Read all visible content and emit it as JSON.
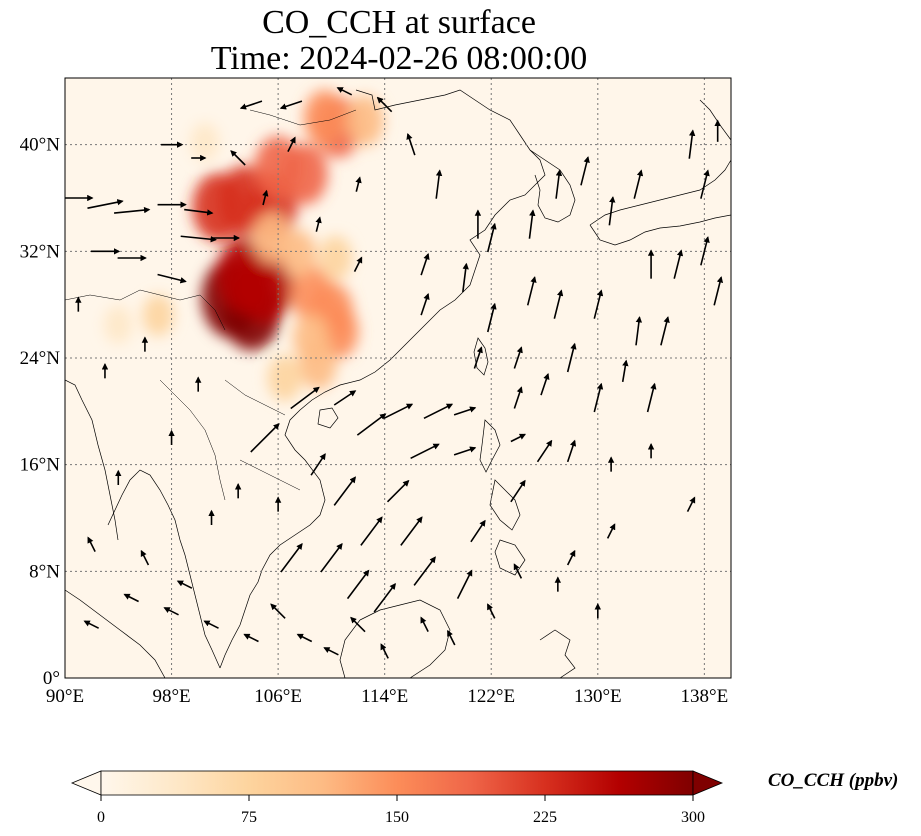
{
  "title": "CO_CCH at surface",
  "subtitle": "Time: 2024-02-26 08:00:00",
  "map": {
    "lon_ticks": [
      "90°E",
      "98°E",
      "106°E",
      "114°E",
      "122°E",
      "130°E",
      "138°E"
    ],
    "lat_ticks": [
      "0°",
      "8°N",
      "16°N",
      "24°N",
      "32°N",
      "40°N"
    ],
    "lon_values": [
      90,
      98,
      106,
      114,
      122,
      130,
      138
    ],
    "lat_values": [
      0,
      8,
      16,
      24,
      32,
      40
    ],
    "extent": {
      "lon_min": 90,
      "lon_max": 140,
      "lat_min": 0,
      "lat_max": 45
    },
    "gridlines": true
  },
  "colorbar": {
    "label": "CO_CCH (ppbv)",
    "ticks": [
      "0",
      "75",
      "150",
      "225",
      "300"
    ],
    "tick_values": [
      0,
      75,
      150,
      225,
      300
    ],
    "min": 0,
    "max": 300,
    "extend": "both",
    "colormap": "OrRd",
    "colors": [
      "#fff7ec",
      "#fee8c8",
      "#fdd49e",
      "#fdbb84",
      "#fc8d59",
      "#ef6548",
      "#d7301f",
      "#b30000",
      "#7f0000"
    ]
  },
  "plume": {
    "lon_lat_value": [
      [
        102.5,
        28.5,
        300
      ],
      [
        104,
        27.5,
        290
      ],
      [
        105,
        29.5,
        280
      ],
      [
        103.5,
        30.2,
        270
      ],
      [
        101.5,
        35.3,
        230
      ],
      [
        103.5,
        35.8,
        240
      ],
      [
        105.5,
        35.3,
        220
      ],
      [
        106,
        38.3,
        190
      ],
      [
        108,
        37.8,
        180
      ],
      [
        110.5,
        41.3,
        180
      ],
      [
        109.5,
        42,
        150
      ],
      [
        112.5,
        41.8,
        120
      ],
      [
        108.5,
        28.8,
        150
      ],
      [
        110,
        27.5,
        160
      ],
      [
        110.5,
        26,
        140
      ],
      [
        108.5,
        25.5,
        110
      ],
      [
        109,
        23.5,
        110
      ],
      [
        106.5,
        22.5,
        90
      ],
      [
        97,
        27.2,
        60
      ],
      [
        94,
        26.5,
        40
      ],
      [
        100.5,
        40.2,
        40
      ],
      [
        107.5,
        31.8,
        100
      ],
      [
        105.5,
        33,
        120
      ],
      [
        110.3,
        31.5,
        80
      ]
    ]
  },
  "wind_vectors": [
    [
      91,
      36,
      4,
      0
    ],
    [
      93,
      35.5,
      5,
      1
    ],
    [
      95,
      35,
      5,
      0.5
    ],
    [
      98,
      35.5,
      4,
      0
    ],
    [
      100,
      35,
      4,
      -0.5
    ],
    [
      93,
      32,
      4,
      0
    ],
    [
      95,
      31.5,
      4,
      0
    ],
    [
      100,
      33,
      5,
      -0.5
    ],
    [
      102,
      33,
      4,
      0
    ],
    [
      98,
      30,
      4,
      -1
    ],
    [
      105,
      18,
      4,
      4
    ],
    [
      108,
      21,
      4,
      3
    ],
    [
      111,
      21,
      3,
      2
    ],
    [
      113,
      19,
      4,
      3
    ],
    [
      115,
      20,
      4,
      2
    ],
    [
      118,
      20,
      4,
      2
    ],
    [
      120,
      20,
      3,
      1
    ],
    [
      117,
      17,
      4,
      2
    ],
    [
      120,
      17,
      3,
      1
    ],
    [
      124,
      18,
      2,
      1
    ],
    [
      109,
      16,
      2,
      3
    ],
    [
      111,
      14,
      3,
      4
    ],
    [
      113,
      11,
      3,
      4
    ],
    [
      116,
      11,
      3,
      4
    ],
    [
      115,
      14,
      3,
      3
    ],
    [
      107,
      9,
      3,
      4
    ],
    [
      110,
      9,
      3,
      4
    ],
    [
      112,
      7,
      3,
      4
    ],
    [
      114,
      6,
      3,
      4
    ],
    [
      117,
      8,
      3,
      4
    ],
    [
      120,
      7,
      2,
      4
    ],
    [
      121,
      11,
      2,
      3
    ],
    [
      124,
      14,
      2,
      3
    ],
    [
      126,
      17,
      2,
      3
    ],
    [
      128,
      17,
      1,
      3
    ],
    [
      124,
      21,
      1,
      3
    ],
    [
      117,
      28,
      1,
      3
    ],
    [
      117,
      31,
      1,
      3
    ],
    [
      120,
      30,
      0.5,
      4
    ],
    [
      122,
      33,
      1,
      4
    ],
    [
      125,
      34,
      0.5,
      4
    ],
    [
      127,
      37,
      0.5,
      4
    ],
    [
      129,
      38,
      1,
      4
    ],
    [
      131,
      35,
      0.5,
      4
    ],
    [
      133,
      37,
      1,
      4
    ],
    [
      134,
      31,
      0,
      4
    ],
    [
      136,
      31,
      1,
      4
    ],
    [
      138,
      32,
      1,
      4
    ],
    [
      130,
      28,
      1,
      4
    ],
    [
      133,
      26,
      0.5,
      4
    ],
    [
      135,
      26,
      1,
      4
    ],
    [
      132,
      23,
      0.5,
      3
    ],
    [
      128,
      24,
      1,
      4
    ],
    [
      127,
      28,
      1,
      4
    ],
    [
      125,
      29,
      1,
      4
    ],
    [
      122,
      27,
      1,
      4
    ],
    [
      121,
      24,
      1,
      3
    ],
    [
      124,
      24,
      1,
      3
    ],
    [
      126,
      22,
      1,
      3
    ],
    [
      130,
      21,
      1,
      4
    ],
    [
      134,
      21,
      1,
      4
    ],
    [
      137,
      40,
      0.5,
      4
    ],
    [
      139,
      41,
      0,
      3
    ],
    [
      138,
      37,
      1,
      4
    ],
    [
      139,
      29,
      1,
      4
    ],
    [
      137,
      13,
      1,
      2
    ],
    [
      134,
      17,
      0,
      2
    ],
    [
      131,
      16,
      0,
      2
    ],
    [
      121,
      34,
      0,
      4
    ],
    [
      118,
      37,
      0.5,
      4
    ],
    [
      116,
      40,
      -1,
      3
    ],
    [
      114,
      43,
      -2,
      2
    ],
    [
      111,
      44,
      -2,
      1
    ],
    [
      107,
      43,
      -3,
      -1
    ],
    [
      104,
      43,
      -3,
      -1
    ],
    [
      98,
      40,
      3,
      0
    ],
    [
      107,
      40,
      1,
      2
    ],
    [
      112,
      37,
      0.5,
      2
    ],
    [
      112,
      31,
      1,
      2
    ],
    [
      109,
      34,
      0.5,
      2
    ],
    [
      105,
      36,
      0.5,
      2
    ],
    [
      103,
      39,
      -2,
      2
    ],
    [
      100,
      39,
      2,
      0
    ],
    [
      94,
      15,
      0,
      2
    ],
    [
      92,
      10,
      -1,
      2
    ],
    [
      96,
      9,
      -1,
      2
    ],
    [
      99,
      7,
      -2,
      1
    ],
    [
      101,
      4,
      -2,
      1
    ],
    [
      104,
      3,
      -2,
      1
    ],
    [
      106,
      5,
      -2,
      2
    ],
    [
      101,
      12,
      0,
      2
    ],
    [
      103,
      14,
      0,
      2
    ],
    [
      106,
      13,
      0,
      2
    ],
    [
      98,
      18,
      0,
      2
    ],
    [
      100,
      22,
      0,
      2
    ],
    [
      93,
      23,
      0,
      2
    ],
    [
      96,
      25,
      0,
      2
    ],
    [
      91,
      28,
      0,
      2
    ],
    [
      95,
      6,
      -2,
      1
    ],
    [
      98,
      5,
      -2,
      1
    ],
    [
      92,
      4,
      -2,
      1
    ],
    [
      108,
      3,
      -2,
      1
    ],
    [
      110,
      2,
      -2,
      1
    ],
    [
      112,
      4,
      -2,
      2
    ],
    [
      114,
      2,
      -1,
      2
    ],
    [
      117,
      4,
      -1,
      2
    ],
    [
      119,
      3,
      -1,
      2
    ],
    [
      122,
      5,
      -1,
      2
    ],
    [
      124,
      8,
      -1,
      2
    ],
    [
      127,
      7,
      0,
      2
    ],
    [
      128,
      9,
      1,
      2
    ],
    [
      130,
      5,
      0,
      2
    ],
    [
      131,
      11,
      1,
      2
    ]
  ]
}
